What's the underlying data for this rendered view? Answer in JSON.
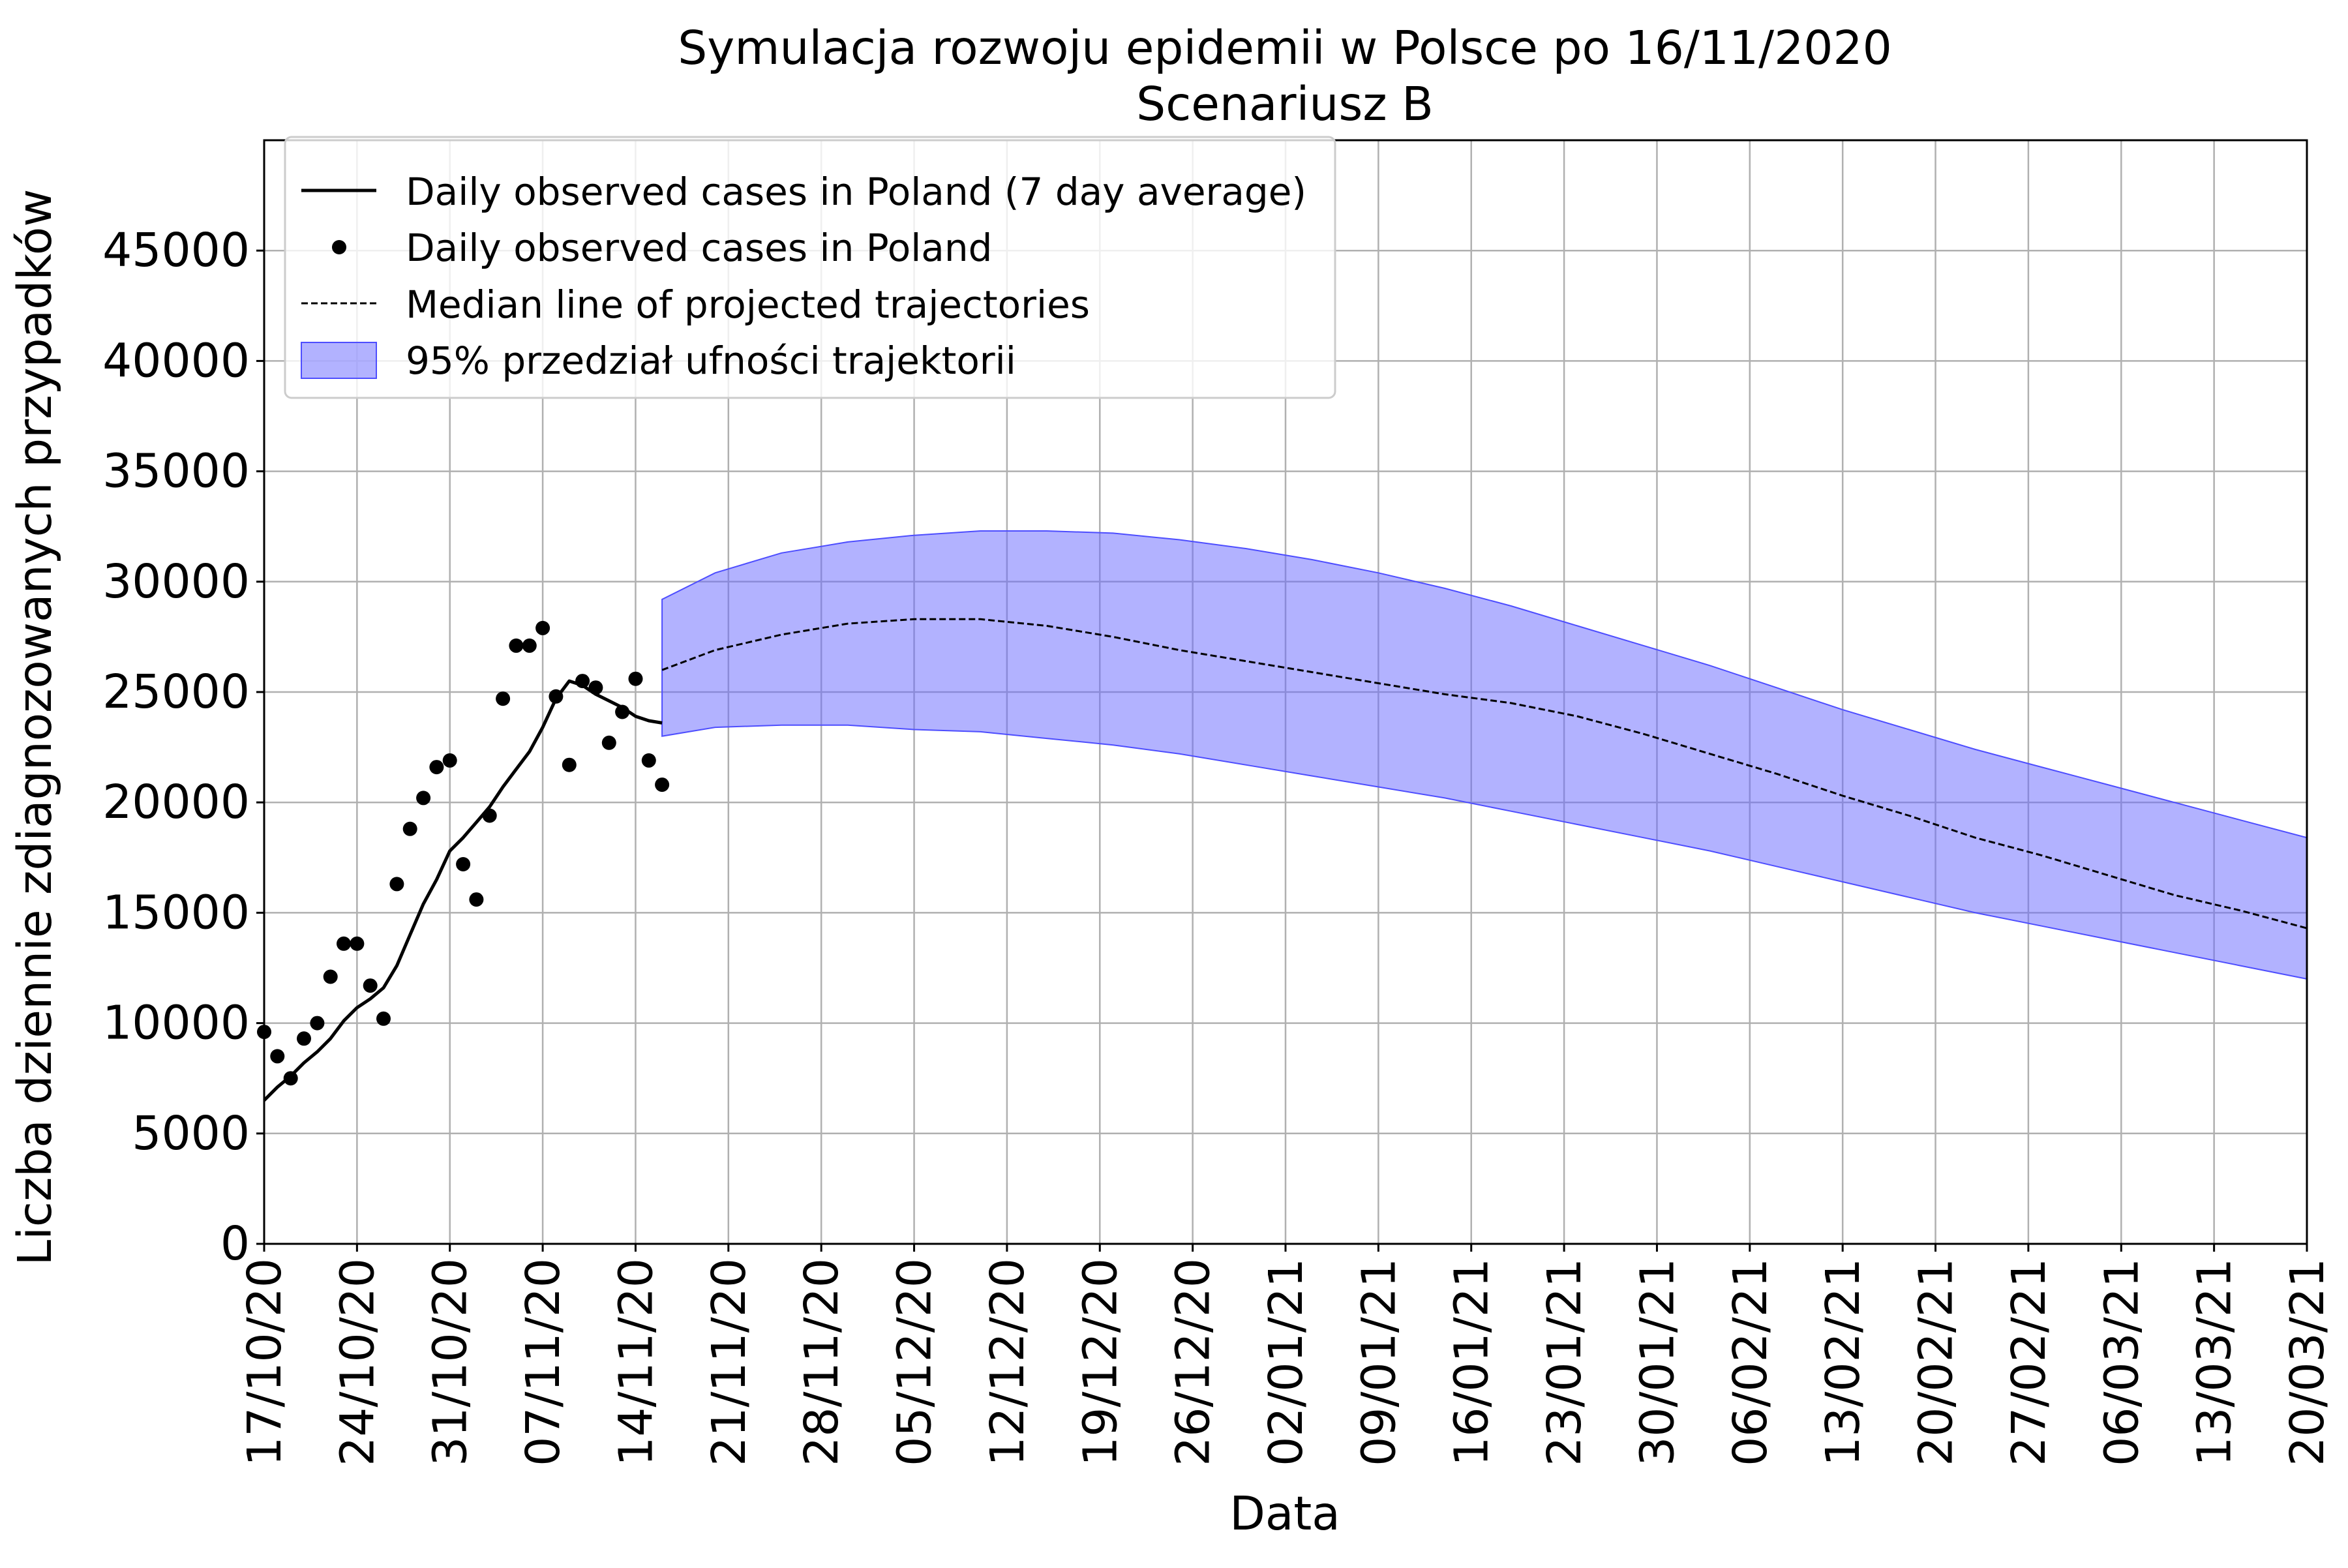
{
  "colors": {
    "background": "#ffffff",
    "grid": "#b0b0b0",
    "axis": "#000000",
    "observed_avg_line": "#000000",
    "observed_points": "#000000",
    "median_line": "#000000",
    "ci_band_fill": "#6666ff",
    "ci_band_edge": "#4d4dff"
  },
  "chart_data": {
    "type": "line",
    "title": "Symulacja rozwoju epidemii w Polsce po 16/11/2020",
    "subtitle": "Scenariusz B",
    "xlabel": "Data",
    "ylabel": "Liczba dziennie zdiagnozowanych przypadków",
    "x_axis": {
      "type": "date",
      "date_format": "DD/MM/YY",
      "range": [
        "2020-10-17",
        "2021-03-20"
      ],
      "tick_dates": [
        "2020-10-17",
        "2020-10-24",
        "2020-10-31",
        "2020-11-07",
        "2020-11-14",
        "2020-11-21",
        "2020-11-28",
        "2020-12-05",
        "2020-12-12",
        "2020-12-19",
        "2020-12-26",
        "2021-01-02",
        "2021-01-09",
        "2021-01-16",
        "2021-01-23",
        "2021-01-30",
        "2021-02-06",
        "2021-02-13",
        "2021-02-20",
        "2021-02-27",
        "2021-03-06",
        "2021-03-13",
        "2021-03-20"
      ],
      "tick_labels": [
        "17/10/20",
        "24/10/20",
        "31/10/20",
        "07/11/20",
        "14/11/20",
        "21/11/20",
        "28/11/20",
        "05/12/20",
        "12/12/20",
        "19/12/20",
        "26/12/20",
        "02/01/21",
        "09/01/21",
        "16/01/21",
        "23/01/21",
        "30/01/21",
        "06/02/21",
        "13/02/21",
        "20/02/21",
        "27/02/21",
        "06/03/21",
        "13/03/21",
        "20/03/21"
      ]
    },
    "y_axis": {
      "range": [
        0,
        50000
      ],
      "ticks": [
        0,
        5000,
        10000,
        15000,
        20000,
        25000,
        30000,
        35000,
        40000,
        45000
      ],
      "tick_labels": [
        "0",
        "5000",
        "10000",
        "15000",
        "20000",
        "25000",
        "30000",
        "35000",
        "40000",
        "45000"
      ]
    },
    "grid": true,
    "legend_position": "top-left",
    "legend": [
      {
        "label": "Daily observed cases in Poland (7 day average)",
        "kind": "line"
      },
      {
        "label": "Daily observed cases in Poland",
        "kind": "marker"
      },
      {
        "label": "Median line of projected trajectories",
        "kind": "dashed"
      },
      {
        "label": "95% przedział ufności trajektorii",
        "kind": "band"
      }
    ],
    "series": [
      {
        "name": "Daily observed cases in Poland (7 day average)",
        "type": "line",
        "x": [
          "2020-10-17",
          "2020-10-18",
          "2020-10-19",
          "2020-10-20",
          "2020-10-21",
          "2020-10-22",
          "2020-10-23",
          "2020-10-24",
          "2020-10-25",
          "2020-10-26",
          "2020-10-27",
          "2020-10-28",
          "2020-10-29",
          "2020-10-30",
          "2020-10-31",
          "2020-11-01",
          "2020-11-02",
          "2020-11-03",
          "2020-11-04",
          "2020-11-05",
          "2020-11-06",
          "2020-11-07",
          "2020-11-08",
          "2020-11-09",
          "2020-11-10",
          "2020-11-11",
          "2020-11-12",
          "2020-11-13",
          "2020-11-14",
          "2020-11-15",
          "2020-11-16"
        ],
        "y": [
          6500,
          7100,
          7600,
          8200,
          8700,
          9300,
          10100,
          10700,
          11100,
          11600,
          12600,
          14000,
          15400,
          16500,
          17800,
          18400,
          19100,
          19800,
          20700,
          21500,
          22300,
          23400,
          24700,
          25500,
          25300,
          24900,
          24600,
          24300,
          23900,
          23700,
          23600
        ]
      },
      {
        "name": "Daily observed cases in Poland",
        "type": "scatter",
        "x": [
          "2020-10-17",
          "2020-10-18",
          "2020-10-19",
          "2020-10-20",
          "2020-10-21",
          "2020-10-22",
          "2020-10-23",
          "2020-10-24",
          "2020-10-25",
          "2020-10-26",
          "2020-10-27",
          "2020-10-28",
          "2020-10-29",
          "2020-10-30",
          "2020-10-31",
          "2020-11-01",
          "2020-11-02",
          "2020-11-03",
          "2020-11-04",
          "2020-11-05",
          "2020-11-06",
          "2020-11-07",
          "2020-11-08",
          "2020-11-09",
          "2020-11-10",
          "2020-11-11",
          "2020-11-12",
          "2020-11-13",
          "2020-11-14",
          "2020-11-15",
          "2020-11-16"
        ],
        "y": [
          9600,
          8500,
          7500,
          9300,
          10000,
          12100,
          13600,
          13600,
          11700,
          10200,
          16300,
          18800,
          20200,
          21600,
          21900,
          17200,
          15600,
          19400,
          24700,
          27100,
          27100,
          27900,
          24800,
          21700,
          25500,
          25200,
          22700,
          24100,
          25600,
          21900,
          20800
        ]
      },
      {
        "name": "Median line of projected trajectories",
        "type": "line",
        "style": "dashed",
        "x": [
          "2020-11-16",
          "2020-11-20",
          "2020-11-25",
          "2020-11-30",
          "2020-12-05",
          "2020-12-10",
          "2020-12-15",
          "2020-12-20",
          "2020-12-25",
          "2020-12-30",
          "2021-01-04",
          "2021-01-09",
          "2021-01-14",
          "2021-01-19",
          "2021-01-24",
          "2021-01-29",
          "2021-02-03",
          "2021-02-08",
          "2021-02-13",
          "2021-02-18",
          "2021-02-23",
          "2021-02-28",
          "2021-03-05",
          "2021-03-10",
          "2021-03-15",
          "2021-03-20"
        ],
        "y": [
          26000,
          26900,
          27600,
          28100,
          28300,
          28300,
          28000,
          27500,
          26900,
          26400,
          25900,
          25400,
          24900,
          24500,
          23900,
          23100,
          22200,
          21300,
          20300,
          19400,
          18400,
          17600,
          16700,
          15800,
          15100,
          14300
        ]
      },
      {
        "name": "95% przedział ufności trajektorii",
        "type": "area",
        "x": [
          "2020-11-16",
          "2020-11-20",
          "2020-11-25",
          "2020-11-30",
          "2020-12-05",
          "2020-12-10",
          "2020-12-15",
          "2020-12-20",
          "2020-12-25",
          "2020-12-30",
          "2021-01-04",
          "2021-01-09",
          "2021-01-14",
          "2021-01-19",
          "2021-01-24",
          "2021-01-29",
          "2021-02-03",
          "2021-02-08",
          "2021-02-13",
          "2021-02-18",
          "2021-02-23",
          "2021-02-28",
          "2021-03-05",
          "2021-03-10",
          "2021-03-15",
          "2021-03-20"
        ],
        "lower": [
          23000,
          23400,
          23500,
          23500,
          23300,
          23200,
          22900,
          22600,
          22200,
          21700,
          21200,
          20700,
          20200,
          19600,
          19000,
          18400,
          17800,
          17100,
          16400,
          15700,
          15000,
          14400,
          13800,
          13200,
          12600,
          12000
        ],
        "upper": [
          29200,
          30400,
          31300,
          31800,
          32100,
          32300,
          32300,
          32200,
          31900,
          31500,
          31000,
          30400,
          29700,
          28900,
          28000,
          27100,
          26200,
          25200,
          24200,
          23300,
          22400,
          21600,
          20800,
          20000,
          19200,
          18400
        ]
      }
    ]
  }
}
